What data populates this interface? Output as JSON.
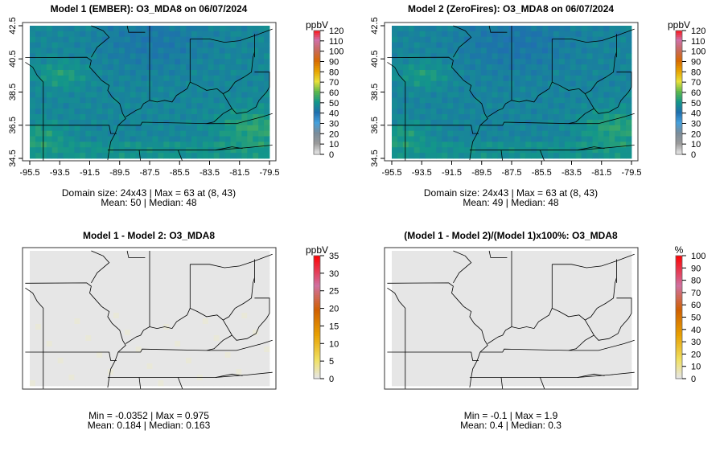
{
  "chart_data": [
    {
      "type": "heatmap",
      "title": "Model 1 (EMBER): O3_MDA8 on 06/07/2024",
      "x_ticks": [
        "-95.5",
        "-93.5",
        "-91.5",
        "-89.5",
        "-87.5",
        "-85.5",
        "-83.5",
        "-81.5",
        "-79.5"
      ],
      "y_ticks": [
        "34.5",
        "36.5",
        "38.5",
        "40.5",
        "42.5"
      ],
      "xlim": [
        -95.5,
        -79.5
      ],
      "ylim": [
        34.5,
        42.5
      ],
      "legend_unit": "ppbV",
      "legend_ticks": [
        "0",
        "10",
        "20",
        "30",
        "40",
        "50",
        "60",
        "70",
        "80",
        "90",
        "100",
        "110",
        "120"
      ],
      "legend_range": [
        0,
        120
      ],
      "stats_line1": "Domain size: 24x43 | Max = 63 at (8, 43)",
      "stats_line2": "Mean: 50 |  Median: 48",
      "mean": 50
    },
    {
      "type": "heatmap",
      "title": "Model 2 (ZeroFires): O3_MDA8 on 06/07/2024",
      "x_ticks": [
        "-95.5",
        "-93.5",
        "-91.5",
        "-89.5",
        "-87.5",
        "-85.5",
        "-83.5",
        "-81.5",
        "-79.5"
      ],
      "y_ticks": [
        "34.5",
        "36.5",
        "38.5",
        "40.5",
        "42.5"
      ],
      "xlim": [
        -95.5,
        -79.5
      ],
      "ylim": [
        34.5,
        42.5
      ],
      "legend_unit": "ppbV",
      "legend_ticks": [
        "0",
        "10",
        "20",
        "30",
        "40",
        "50",
        "60",
        "70",
        "80",
        "90",
        "100",
        "110",
        "120"
      ],
      "legend_range": [
        0,
        120
      ],
      "stats_line1": "Domain size: 24x43 | Max = 63 at (8, 43)",
      "stats_line2": "Mean: 49 |  Median: 48",
      "mean": 49
    },
    {
      "type": "heatmap",
      "title": "Model 1 - Model 2: O3_MDA8",
      "x_ticks": [],
      "y_ticks": [],
      "legend_unit": "ppbV",
      "legend_ticks": [
        "0",
        "5",
        "10",
        "15",
        "20",
        "25",
        "30",
        "35"
      ],
      "legend_range": [
        0,
        35
      ],
      "stats_line1": "Min = -0.0352 | Max = 0.975",
      "stats_line2": "Mean: 0.184 |  Median: 0.163",
      "mean": 0.184
    },
    {
      "type": "heatmap",
      "title": "(Model 1 - Model 2)/(Model 1)x100%: O3_MDA8",
      "x_ticks": [],
      "y_ticks": [],
      "legend_unit": "%",
      "legend_ticks": [
        "0",
        "10",
        "20",
        "30",
        "40",
        "50",
        "60",
        "70",
        "80",
        "90",
        "100"
      ],
      "legend_range": [
        0,
        100
      ],
      "stats_line1": "Min = -0.1 | Max = 1.9",
      "stats_line2": "Mean: 0.4 |  Median: 0.3",
      "mean": 0.4
    }
  ]
}
